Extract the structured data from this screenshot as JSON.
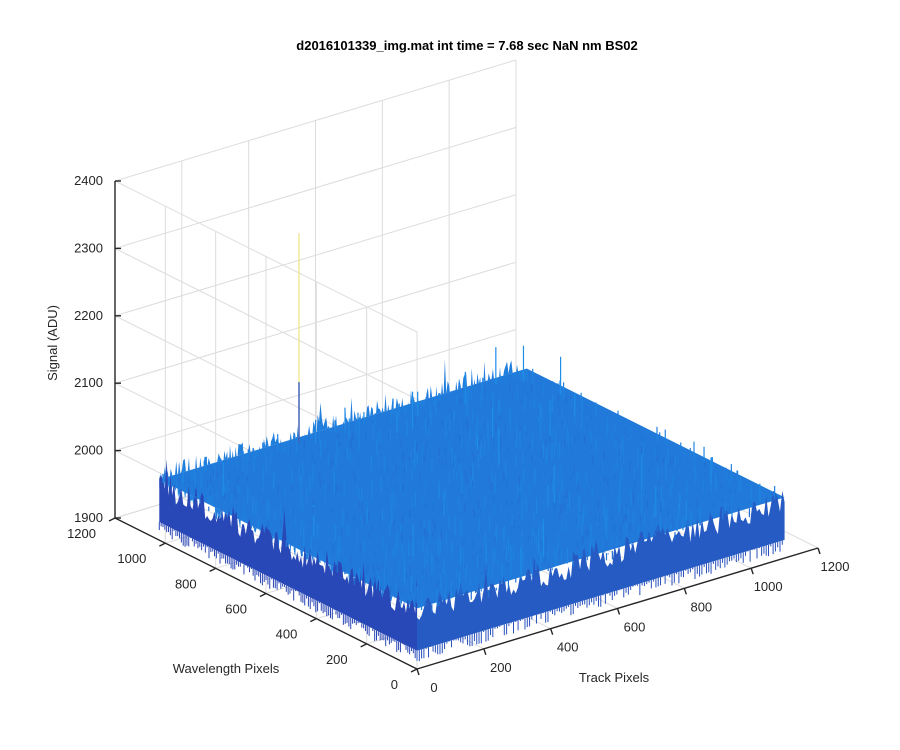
{
  "window": {
    "title": "d2016101339_img.mat int time = 7.68 sec  NaN nm BS02"
  },
  "chart_data": {
    "type": "surface",
    "title": "d2016101339_img.mat int time = 7.68 sec  NaN nm BS02",
    "xlabel": "Track Pixels",
    "ylabel": "Wavelength Pixels",
    "zlabel": "Signal (ADU)",
    "xlim": [
      0,
      1200
    ],
    "ylim": [
      0,
      1200
    ],
    "zlim": [
      1900,
      2400
    ],
    "x_extent": [
      0,
      1100
    ],
    "y_extent": [
      0,
      1024
    ],
    "x_ticks": [
      0,
      200,
      400,
      600,
      800,
      1000,
      1200
    ],
    "y_ticks": [
      0,
      200,
      400,
      600,
      800,
      1000,
      1200
    ],
    "z_ticks": [
      1900,
      2000,
      2100,
      2200,
      2300,
      2400
    ],
    "x_tick_labels": [
      "0",
      "200",
      "400",
      "600",
      "800",
      "1000",
      "1200"
    ],
    "y_tick_labels": [
      "0",
      "200",
      "400",
      "600",
      "800",
      "1000",
      "1200"
    ],
    "z_tick_labels": [
      "1900",
      "2000",
      "2100",
      "2200",
      "2300",
      "2400"
    ],
    "surface_level_range": [
      1935,
      2040
    ],
    "surface_typical": 1990,
    "spike": {
      "x": 400,
      "y": 1000,
      "z": 2300
    },
    "grid": true,
    "colormap": "parula",
    "colors": {
      "surface_low": "#2a3fb0",
      "surface_high": "#1e8ee8",
      "spike": "#f0e68c"
    }
  }
}
